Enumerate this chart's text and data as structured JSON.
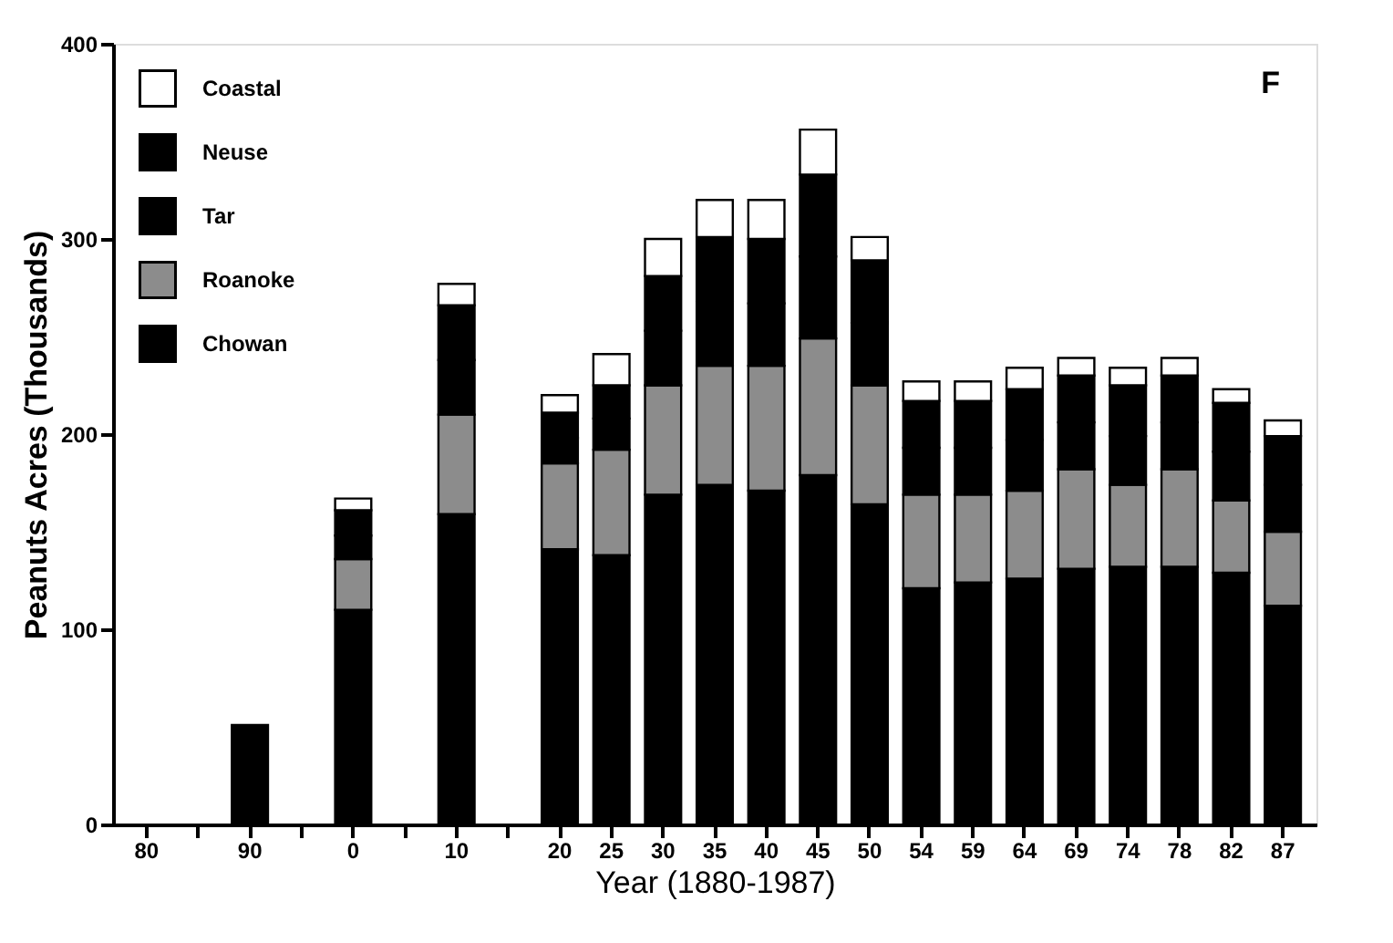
{
  "chart_data": {
    "type": "bar",
    "stacked": true,
    "xlabel": "Year (1880-1987)",
    "ylabel": "Peanuts Acres (Thousands)",
    "annotations": [
      "F"
    ],
    "categories": [
      "80",
      null,
      "90",
      null,
      "0",
      null,
      "10",
      null,
      "20",
      "25",
      "30",
      "35",
      "40",
      "45",
      "50",
      "54",
      "59",
      "64",
      "69",
      "74",
      "78",
      "82",
      "87"
    ],
    "series": [
      {
        "name": "Chowan",
        "color": "#000000",
        "values": [
          null,
          null,
          51,
          null,
          110,
          null,
          159,
          null,
          141,
          138,
          169,
          174,
          171,
          179,
          164,
          121,
          124,
          126,
          131,
          132,
          132,
          129,
          112
        ]
      },
      {
        "name": "Roanoke",
        "color": "#8c8c8c",
        "values": [
          null,
          null,
          null,
          null,
          26,
          null,
          51,
          null,
          44,
          54,
          56,
          61,
          64,
          70,
          61,
          48,
          45,
          45,
          51,
          42,
          50,
          37,
          38
        ]
      },
      {
        "name": "Tar",
        "color": "#000000",
        "values": [
          null,
          null,
          null,
          null,
          12,
          null,
          28,
          null,
          13,
          16,
          28,
          33,
          32,
          42,
          32,
          24,
          24,
          26,
          24,
          25,
          24,
          25,
          24
        ]
      },
      {
        "name": "Neuse",
        "color": "#000000",
        "values": [
          null,
          null,
          null,
          null,
          13,
          null,
          28,
          null,
          13,
          17,
          28,
          33,
          33,
          42,
          32,
          24,
          24,
          26,
          24,
          26,
          24,
          25,
          25
        ]
      },
      {
        "name": "Coastal",
        "color": "#ffffff",
        "values": [
          null,
          null,
          null,
          null,
          6,
          null,
          11,
          null,
          9,
          16,
          19,
          19,
          20,
          23,
          12,
          10,
          10,
          11,
          9,
          9,
          9,
          7,
          8
        ]
      }
    ],
    "ylim": [
      0,
      400
    ],
    "yticks": [
      0,
      100,
      200,
      300,
      400
    ],
    "grid": false,
    "legend": "top left"
  }
}
